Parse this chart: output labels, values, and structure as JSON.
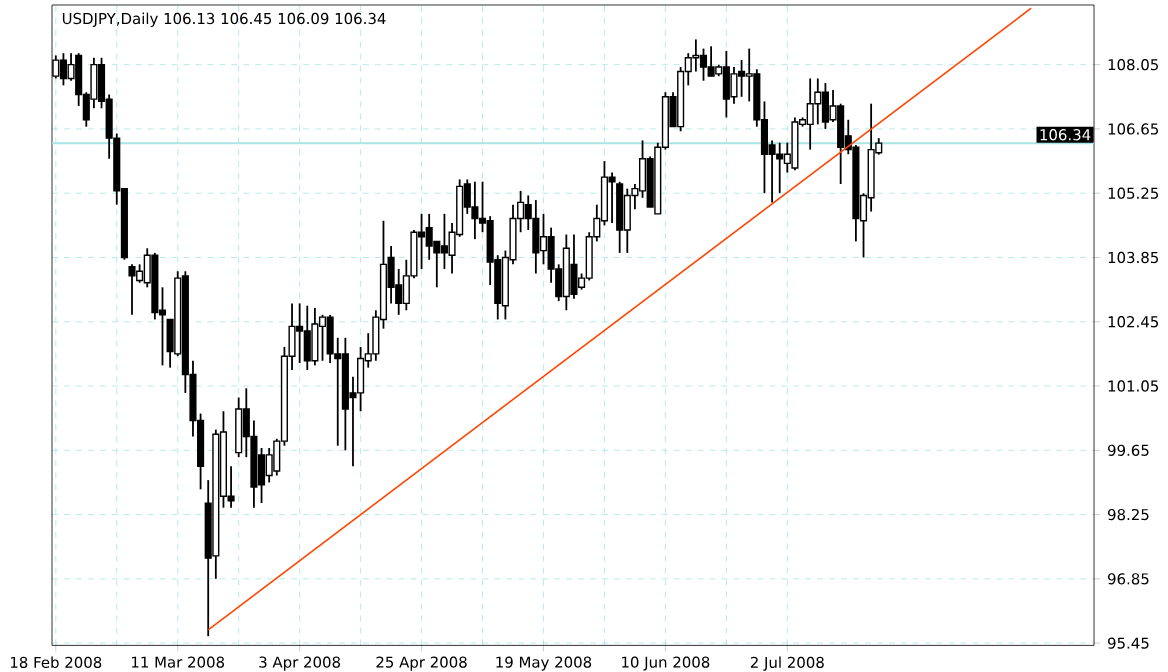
{
  "chart_data": {
    "type": "candlestick",
    "title": "USDJPY,Daily  106.13 106.45 106.09 106.34",
    "categories": [
      "18 Feb 2008",
      null,
      null,
      null,
      null,
      null,
      null,
      null,
      null,
      null,
      null,
      null,
      null,
      null,
      null,
      null,
      "11 Mar 2008",
      null,
      null,
      null,
      null,
      null,
      null,
      null,
      null,
      null,
      null,
      null,
      null,
      null,
      null,
      null,
      "3 Apr 2008",
      null,
      null,
      null,
      null,
      null,
      null,
      null,
      null,
      null,
      null,
      null,
      null,
      null,
      null,
      null,
      "25 Apr 2008",
      null,
      null,
      null,
      null,
      null,
      null,
      null,
      null,
      null,
      null,
      null,
      null,
      null,
      null,
      null,
      "19 May 2008",
      null,
      null,
      null,
      null,
      null,
      null,
      null,
      null,
      null,
      null,
      null,
      null,
      null,
      null,
      null,
      "10 Jun 2008",
      null,
      null,
      null,
      null,
      null,
      null,
      null,
      null,
      null,
      null,
      null,
      null,
      null,
      null,
      null,
      "2 Jul 2008",
      null,
      null,
      null,
      null,
      null,
      null,
      null,
      null,
      null,
      null,
      null,
      null,
      null,
      null,
      null,
      null,
      null,
      null,
      null,
      null,
      null,
      null,
      null,
      null,
      null,
      null,
      null,
      null,
      null,
      null,
      null,
      null,
      null,
      null,
      null,
      null,
      null,
      null,
      null,
      null
    ],
    "ohlc": [
      [
        107.8,
        108.25,
        107.75,
        108.15
      ],
      [
        108.15,
        108.3,
        107.6,
        107.75
      ],
      [
        107.75,
        108.3,
        107.7,
        108.05
      ],
      [
        108.25,
        108.3,
        107.15,
        107.4
      ],
      [
        107.4,
        107.45,
        106.7,
        106.85
      ],
      [
        107.3,
        108.2,
        107.1,
        108.05
      ],
      [
        108.05,
        108.2,
        107.1,
        107.25
      ],
      [
        107.3,
        107.4,
        106.0,
        106.45
      ],
      [
        106.45,
        106.55,
        105.0,
        105.3
      ],
      [
        105.35,
        105.35,
        103.8,
        103.85
      ],
      [
        103.65,
        103.7,
        102.6,
        103.45
      ],
      [
        103.35,
        103.7,
        103.3,
        103.55
      ],
      [
        103.3,
        104.05,
        103.2,
        103.9
      ],
      [
        103.9,
        103.95,
        102.5,
        102.65
      ],
      [
        102.7,
        103.2,
        101.5,
        102.6
      ],
      [
        102.5,
        102.5,
        101.45,
        101.8
      ],
      [
        101.75,
        103.55,
        101.7,
        103.4
      ],
      [
        103.45,
        103.55,
        100.9,
        101.3
      ],
      [
        101.3,
        101.6,
        99.95,
        100.3
      ],
      [
        100.3,
        100.45,
        98.8,
        99.3
      ],
      [
        98.5,
        99.0,
        95.6,
        97.3
      ],
      [
        97.35,
        100.1,
        96.85,
        100.0
      ],
      [
        98.65,
        100.5,
        98.4,
        100.05
      ],
      [
        98.65,
        99.3,
        98.4,
        98.55
      ],
      [
        99.6,
        100.8,
        99.5,
        100.55
      ],
      [
        100.55,
        101.0,
        99.5,
        99.95
      ],
      [
        99.95,
        100.3,
        98.4,
        98.85
      ],
      [
        99.55,
        99.7,
        98.5,
        98.9
      ],
      [
        99.1,
        99.7,
        98.95,
        99.55
      ],
      [
        99.2,
        99.9,
        99.1,
        99.85
      ],
      [
        99.85,
        101.9,
        99.75,
        101.7
      ],
      [
        101.7,
        102.85,
        101.4,
        102.35
      ],
      [
        102.35,
        102.85,
        101.55,
        102.25
      ],
      [
        102.25,
        102.8,
        101.4,
        101.6
      ],
      [
        101.6,
        102.75,
        101.5,
        102.4
      ],
      [
        102.35,
        102.6,
        101.6,
        102.55
      ],
      [
        102.55,
        102.6,
        101.55,
        101.75
      ],
      [
        101.75,
        102.1,
        99.75,
        101.65
      ],
      [
        101.75,
        102.1,
        99.65,
        100.55
      ],
      [
        100.9,
        101.25,
        99.3,
        100.8
      ],
      [
        100.9,
        101.9,
        100.5,
        101.65
      ],
      [
        101.6,
        102.2,
        101.45,
        101.75
      ],
      [
        101.75,
        102.7,
        101.6,
        102.55
      ],
      [
        102.5,
        104.65,
        102.3,
        103.7
      ],
      [
        103.85,
        104.1,
        102.85,
        103.2
      ],
      [
        103.25,
        103.6,
        102.6,
        102.85
      ],
      [
        102.85,
        103.8,
        102.7,
        103.45
      ],
      [
        103.45,
        104.45,
        103.4,
        104.4
      ],
      [
        104.4,
        104.8,
        103.6,
        104.3
      ],
      [
        104.5,
        104.8,
        103.8,
        104.1
      ],
      [
        104.2,
        104.2,
        103.2,
        103.95
      ],
      [
        104.1,
        104.8,
        103.6,
        103.95
      ],
      [
        103.9,
        104.6,
        103.5,
        104.4
      ],
      [
        104.35,
        105.55,
        104.3,
        105.4
      ],
      [
        105.45,
        105.55,
        104.8,
        104.95
      ],
      [
        104.95,
        105.5,
        104.25,
        104.7
      ],
      [
        104.7,
        105.5,
        104.4,
        104.6
      ],
      [
        104.65,
        104.75,
        103.25,
        103.75
      ],
      [
        103.8,
        103.9,
        102.5,
        102.85
      ],
      [
        102.8,
        104.0,
        102.5,
        103.85
      ],
      [
        103.8,
        105.0,
        103.7,
        104.7
      ],
      [
        104.7,
        105.3,
        104.4,
        105.05
      ],
      [
        105.0,
        105.2,
        104.45,
        104.7
      ],
      [
        104.7,
        105.1,
        103.5,
        103.95
      ],
      [
        104.0,
        104.8,
        103.7,
        104.3
      ],
      [
        104.3,
        104.5,
        103.3,
        103.6
      ],
      [
        103.6,
        103.7,
        102.9,
        103.0
      ],
      [
        103.0,
        104.35,
        102.7,
        104.05
      ],
      [
        103.7,
        104.35,
        102.95,
        103.05
      ],
      [
        103.2,
        103.5,
        103.15,
        103.4
      ],
      [
        103.4,
        104.4,
        103.35,
        104.3
      ],
      [
        104.3,
        105.0,
        104.2,
        104.7
      ],
      [
        104.65,
        105.95,
        104.55,
        105.6
      ],
      [
        105.6,
        105.7,
        104.6,
        105.5
      ],
      [
        105.45,
        105.5,
        103.95,
        104.45
      ],
      [
        104.45,
        105.35,
        103.95,
        105.2
      ],
      [
        105.2,
        105.45,
        104.9,
        105.35
      ],
      [
        105.3,
        106.4,
        105.15,
        106.0
      ],
      [
        106.0,
        106.05,
        104.95,
        104.95
      ],
      [
        104.8,
        106.35,
        104.8,
        106.25
      ],
      [
        106.25,
        107.45,
        106.2,
        107.35
      ],
      [
        107.35,
        107.45,
        106.7,
        106.7
      ],
      [
        106.7,
        108.0,
        106.6,
        107.9
      ],
      [
        107.9,
        108.3,
        107.6,
        108.2
      ],
      [
        108.2,
        108.6,
        107.9,
        108.25
      ],
      [
        108.25,
        108.4,
        107.7,
        108.0
      ],
      [
        108.0,
        108.45,
        107.8,
        107.8
      ],
      [
        107.85,
        108.05,
        107.8,
        108.0
      ],
      [
        108.0,
        108.35,
        106.9,
        107.3
      ],
      [
        107.35,
        108.0,
        107.2,
        107.85
      ],
      [
        107.9,
        108.15,
        107.35,
        107.8
      ],
      [
        107.8,
        108.4,
        107.25,
        107.85
      ],
      [
        107.85,
        107.95,
        106.7,
        106.85
      ],
      [
        106.85,
        107.25,
        105.25,
        106.1
      ],
      [
        106.3,
        106.4,
        105.05,
        106.1
      ],
      [
        106.1,
        106.35,
        105.25,
        106.0
      ],
      [
        105.9,
        106.35,
        105.7,
        106.1
      ],
      [
        105.8,
        106.9,
        105.75,
        106.8
      ],
      [
        106.75,
        106.9,
        106.7,
        106.85
      ],
      [
        106.75,
        107.75,
        106.2,
        107.2
      ],
      [
        107.2,
        107.75,
        106.75,
        107.45
      ],
      [
        107.45,
        107.65,
        106.65,
        106.8
      ],
      [
        106.85,
        107.5,
        106.8,
        107.15
      ],
      [
        107.15,
        107.2,
        105.45,
        106.25
      ],
      [
        106.5,
        106.85,
        106.1,
        106.2
      ],
      [
        106.25,
        106.3,
        104.2,
        104.7
      ],
      [
        104.65,
        105.25,
        103.85,
        105.2
      ],
      [
        105.15,
        107.2,
        104.85,
        106.2
      ],
      [
        106.13,
        106.45,
        106.09,
        106.34
      ],
      null,
      null,
      null,
      null,
      null,
      null,
      null,
      null,
      null,
      null,
      null,
      null,
      null,
      null,
      null,
      null,
      null,
      null,
      null,
      null,
      null,
      null,
      null,
      null,
      null,
      null,
      null,
      null
    ],
    "series": [
      {
        "type": "line",
        "color": "#ff4500",
        "values": [
          null,
          null,
          null,
          null,
          null,
          null,
          null,
          null,
          null,
          null,
          null,
          null,
          null,
          null,
          null,
          null,
          null,
          null,
          null,
          null,
          95.74,
          null,
          null,
          null,
          null,
          null,
          null,
          null,
          null,
          null,
          null,
          null,
          null,
          null,
          null,
          null,
          null,
          null,
          null,
          null,
          null,
          null,
          null,
          null,
          null,
          null,
          null,
          null,
          null,
          null,
          null,
          null,
          null,
          null,
          null,
          null,
          null,
          null,
          null,
          null,
          null,
          null,
          null,
          null,
          null,
          null,
          null,
          null,
          null,
          null,
          null,
          null,
          null,
          null,
          null,
          null,
          null,
          null,
          null,
          null,
          null,
          null,
          null,
          null,
          null,
          null,
          null,
          null,
          null,
          null,
          null,
          null,
          null,
          null,
          null,
          null,
          null,
          null,
          null,
          null,
          null,
          null,
          null,
          null,
          null,
          null,
          null,
          null,
          null,
          null,
          null,
          null,
          null,
          null,
          null,
          null,
          null,
          null,
          null,
          null,
          null,
          null,
          null,
          null,
          null,
          null,
          null,
          null,
          109.28,
          null,
          null,
          null,
          null,
          null,
          null,
          null,
          null
        ]
      }
    ],
    "ylim": [
      95.4,
      109.35
    ],
    "yticks": [
      95.45,
      96.85,
      98.25,
      99.65,
      101.05,
      102.45,
      103.85,
      105.25,
      106.65,
      108.05
    ],
    "grid": true,
    "ref_lines": [
      {
        "axis": "y",
        "value": 106.34,
        "label": "106.34",
        "color": "#a8e4e4"
      }
    ]
  }
}
